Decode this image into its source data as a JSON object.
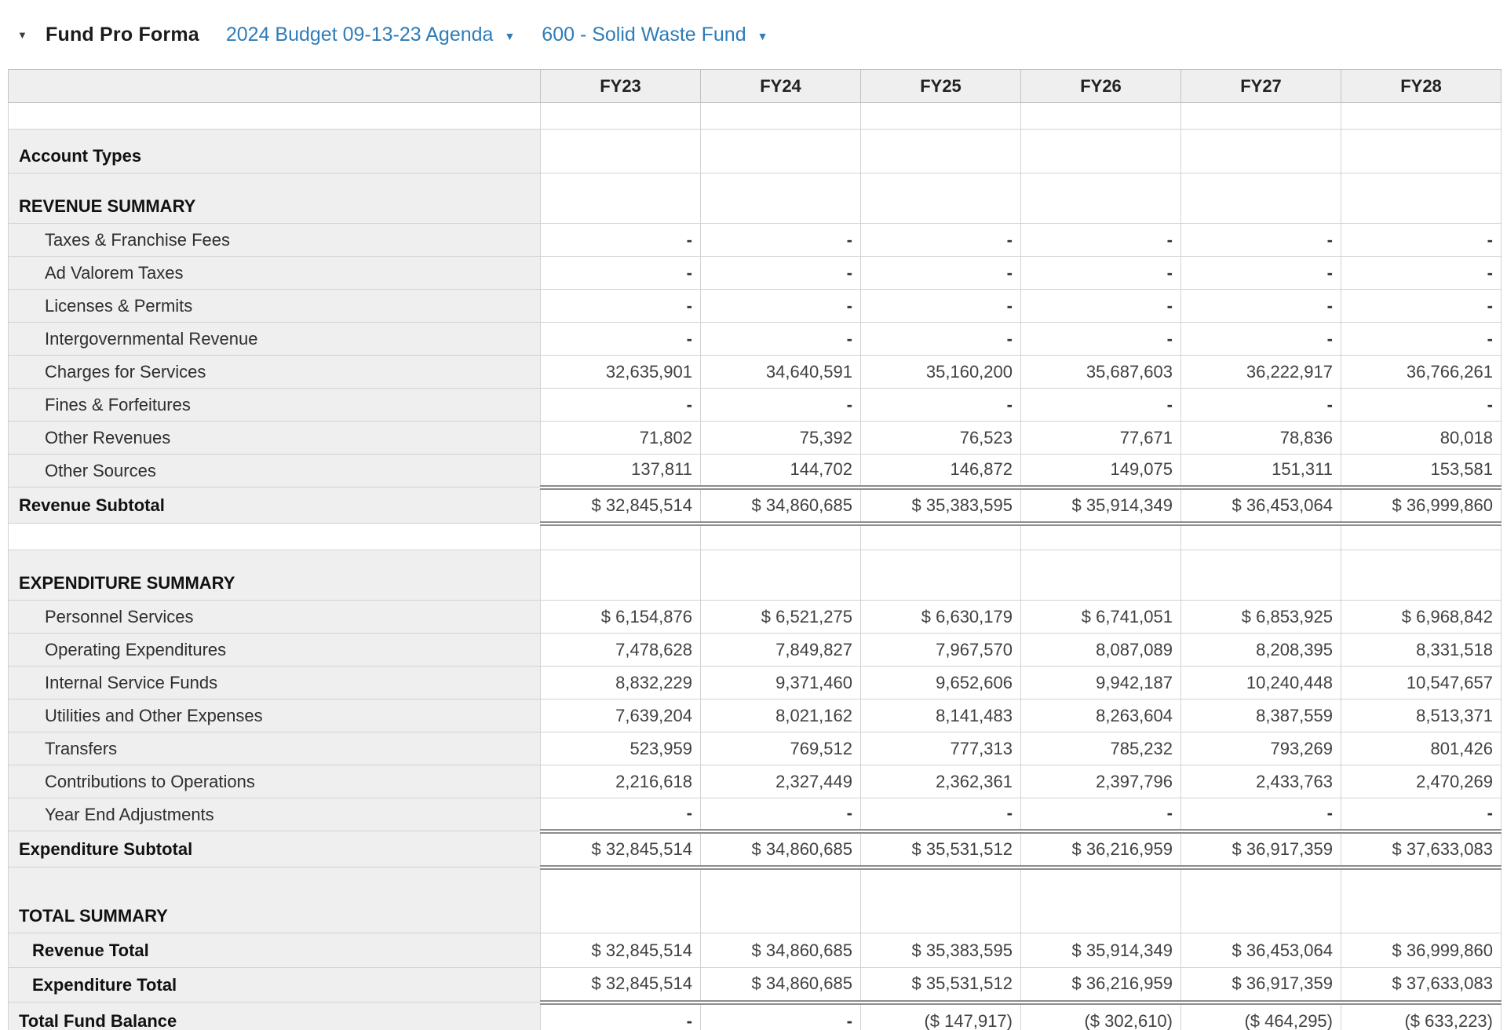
{
  "header": {
    "collapse_icon": "▼",
    "title": "Fund Pro Forma",
    "budget_selector": "2024 Budget 09-13-23 Agenda",
    "fund_selector": "600 - Solid Waste Fund",
    "dropdown_icon": "▼",
    "link_color": "#2e7cb8"
  },
  "table": {
    "columns": [
      "FY23",
      "FY24",
      "FY25",
      "FY26",
      "FY27",
      "FY28"
    ],
    "rows": [
      {
        "kind": "spacer",
        "label": "",
        "values": [
          "",
          "",
          "",
          "",
          "",
          ""
        ]
      },
      {
        "kind": "section-sm",
        "label": "Account Types",
        "values": [
          "",
          "",
          "",
          "",
          "",
          ""
        ]
      },
      {
        "kind": "section",
        "label": "REVENUE SUMMARY",
        "values": [
          "",
          "",
          "",
          "",
          "",
          ""
        ]
      },
      {
        "kind": "data",
        "label": "Taxes & Franchise Fees",
        "values": [
          "-",
          "-",
          "-",
          "-",
          "-",
          "-"
        ]
      },
      {
        "kind": "data",
        "label": "Ad Valorem Taxes",
        "values": [
          "-",
          "-",
          "-",
          "-",
          "-",
          "-"
        ]
      },
      {
        "kind": "data",
        "label": "Licenses & Permits",
        "values": [
          "-",
          "-",
          "-",
          "-",
          "-",
          "-"
        ]
      },
      {
        "kind": "data",
        "label": "Intergovernmental Revenue",
        "values": [
          "-",
          "-",
          "-",
          "-",
          "-",
          "-"
        ]
      },
      {
        "kind": "data",
        "label": "Charges for Services",
        "values": [
          "32,635,901",
          "34,640,591",
          "35,160,200",
          "35,687,603",
          "36,222,917",
          "36,766,261"
        ]
      },
      {
        "kind": "data",
        "label": "Fines & Forfeitures",
        "values": [
          "-",
          "-",
          "-",
          "-",
          "-",
          "-"
        ]
      },
      {
        "kind": "data",
        "label": "Other Revenues",
        "values": [
          "71,802",
          "75,392",
          "76,523",
          "77,671",
          "78,836",
          "80,018"
        ]
      },
      {
        "kind": "data",
        "label": "Other Sources",
        "values": [
          "137,811",
          "144,702",
          "146,872",
          "149,075",
          "151,311",
          "153,581"
        ]
      },
      {
        "kind": "subtotal",
        "label": "Revenue Subtotal",
        "dblTop": true,
        "dblBottom": true,
        "values": [
          "$ 32,845,514",
          "$ 34,860,685",
          "$ 35,383,595",
          "$ 35,914,349",
          "$ 36,453,064",
          "$ 36,999,860"
        ]
      },
      {
        "kind": "spacer",
        "label": "",
        "values": [
          "",
          "",
          "",
          "",
          "",
          ""
        ]
      },
      {
        "kind": "section",
        "label": "EXPENDITURE SUMMARY",
        "values": [
          "",
          "",
          "",
          "",
          "",
          ""
        ]
      },
      {
        "kind": "data",
        "label": "Personnel Services",
        "values": [
          "$ 6,154,876",
          "$ 6,521,275",
          "$ 6,630,179",
          "$ 6,741,051",
          "$ 6,853,925",
          "$ 6,968,842"
        ]
      },
      {
        "kind": "data",
        "label": "Operating Expenditures",
        "values": [
          "7,478,628",
          "7,849,827",
          "7,967,570",
          "8,087,089",
          "8,208,395",
          "8,331,518"
        ]
      },
      {
        "kind": "data",
        "label": "Internal Service Funds",
        "values": [
          "8,832,229",
          "9,371,460",
          "9,652,606",
          "9,942,187",
          "10,240,448",
          "10,547,657"
        ]
      },
      {
        "kind": "data",
        "label": "Utilities and Other Expenses",
        "values": [
          "7,639,204",
          "8,021,162",
          "8,141,483",
          "8,263,604",
          "8,387,559",
          "8,513,371"
        ]
      },
      {
        "kind": "data",
        "label": "Transfers",
        "values": [
          "523,959",
          "769,512",
          "777,313",
          "785,232",
          "793,269",
          "801,426"
        ]
      },
      {
        "kind": "data",
        "label": "Contributions to Operations",
        "values": [
          "2,216,618",
          "2,327,449",
          "2,362,361",
          "2,397,796",
          "2,433,763",
          "2,470,269"
        ]
      },
      {
        "kind": "data",
        "label": "Year End Adjustments",
        "values": [
          "-",
          "-",
          "-",
          "-",
          "-",
          "-"
        ]
      },
      {
        "kind": "subtotal",
        "label": "Expenditure Subtotal",
        "dblTop": true,
        "dblBottom": true,
        "values": [
          "$ 32,845,514",
          "$ 34,860,685",
          "$ 35,531,512",
          "$ 36,216,959",
          "$ 36,917,359",
          "$ 37,633,083"
        ]
      },
      {
        "kind": "section-lg",
        "label": "TOTAL SUMMARY",
        "values": [
          "",
          "",
          "",
          "",
          "",
          ""
        ]
      },
      {
        "kind": "total",
        "label": "Revenue Total",
        "values": [
          "$ 32,845,514",
          "$ 34,860,685",
          "$ 35,383,595",
          "$ 35,914,349",
          "$ 36,453,064",
          "$ 36,999,860"
        ]
      },
      {
        "kind": "total",
        "label": "Expenditure Total",
        "dblBottom": true,
        "values": [
          "$ 32,845,514",
          "$ 34,860,685",
          "$ 35,531,512",
          "$ 36,216,959",
          "$ 36,917,359",
          "$ 37,633,083"
        ]
      },
      {
        "kind": "grand",
        "label": "Total Fund Balance",
        "dblBottom": true,
        "values": [
          "-",
          "-",
          "($ 147,917)",
          "($ 302,610)",
          "($ 464,295)",
          "($ 633,223)"
        ]
      }
    ]
  }
}
